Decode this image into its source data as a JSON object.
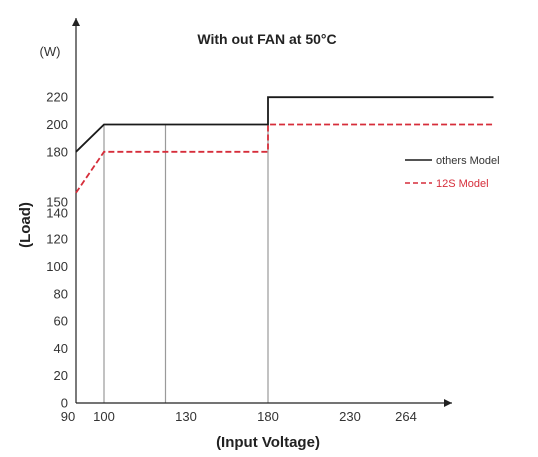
{
  "chart_data": {
    "type": "line",
    "title": "With out FAN at 50°C",
    "unit_label": "(W)",
    "xlabel": "(Input Voltage)",
    "ylabel": "(Load)",
    "x_ticks": [
      90,
      100,
      130,
      180,
      230,
      264
    ],
    "y_ticks": [
      0,
      20,
      40,
      60,
      80,
      100,
      120,
      140,
      150,
      180,
      200,
      220
    ],
    "x_range": [
      90,
      290
    ],
    "y_breakpoints": [
      {
        "value": 0,
        "level": 0
      },
      {
        "value": 140,
        "level": 7
      },
      {
        "value": 150,
        "level": 7.7
      },
      {
        "value": 180,
        "level": 9.2
      },
      {
        "value": 200,
        "level": 10.2
      },
      {
        "value": 220,
        "level": 11.2
      }
    ],
    "vertical_gridlines": [
      100,
      130,
      180
    ],
    "series": [
      {
        "name": "others Model",
        "color": "#1a1a1a",
        "dash": "solid",
        "x": [
          90,
          100,
          180,
          180,
          290
        ],
        "y": [
          180,
          200,
          200,
          220,
          220
        ]
      },
      {
        "name": "12S Model",
        "color": "#d62d3a",
        "dash": "dashed",
        "x": [
          90,
          100,
          180,
          180,
          290
        ],
        "y": [
          150,
          180,
          180,
          200,
          200
        ]
      }
    ],
    "legend_position": "right"
  }
}
